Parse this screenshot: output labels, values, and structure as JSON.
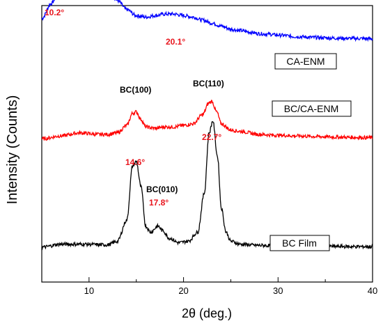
{
  "chart_data": {
    "type": "line",
    "xlabel": "2θ (deg.)",
    "ylabel": "Intensity (Counts)",
    "xlim": [
      5,
      40
    ],
    "xticks": [
      "10",
      "20",
      "30",
      "40"
    ],
    "y_ticks_shown": false,
    "grid": false,
    "series": [
      {
        "name": "CA-ENM",
        "color": "#0000ff",
        "offset": 0.68,
        "points": [
          [
            5,
            0.08
          ],
          [
            6,
            0.13
          ],
          [
            7,
            0.19
          ],
          [
            8,
            0.24
          ],
          [
            9,
            0.27
          ],
          [
            10,
            0.265
          ],
          [
            11,
            0.23
          ],
          [
            12,
            0.18
          ],
          [
            13,
            0.14
          ],
          [
            14,
            0.11
          ],
          [
            15,
            0.09
          ],
          [
            16,
            0.085
          ],
          [
            17,
            0.09
          ],
          [
            18,
            0.095
          ],
          [
            19,
            0.095
          ],
          [
            20,
            0.09
          ],
          [
            21,
            0.085
          ],
          [
            22,
            0.075
          ],
          [
            23,
            0.065
          ],
          [
            24,
            0.055
          ],
          [
            25,
            0.045
          ],
          [
            26,
            0.04
          ],
          [
            27,
            0.035
          ],
          [
            28,
            0.03
          ],
          [
            29,
            0.028
          ],
          [
            30,
            0.025
          ],
          [
            32,
            0.02
          ],
          [
            34,
            0.017
          ],
          [
            36,
            0.015
          ],
          [
            38,
            0.014
          ],
          [
            40,
            0.013
          ]
        ]
      },
      {
        "name": "BC/CA-ENM",
        "color": "#ff0000",
        "offset": 0.36,
        "points": [
          [
            5,
            0.0
          ],
          [
            7,
            0.01
          ],
          [
            9,
            0.02
          ],
          [
            11,
            0.015
          ],
          [
            12,
            0.015
          ],
          [
            13,
            0.02
          ],
          [
            14,
            0.045
          ],
          [
            14.6,
            0.085
          ],
          [
            15,
            0.09
          ],
          [
            15.5,
            0.065
          ],
          [
            16,
            0.04
          ],
          [
            17,
            0.035
          ],
          [
            18,
            0.04
          ],
          [
            19,
            0.04
          ],
          [
            20,
            0.045
          ],
          [
            21,
            0.05
          ],
          [
            22,
            0.08
          ],
          [
            22.7,
            0.12
          ],
          [
            23,
            0.125
          ],
          [
            23.5,
            0.09
          ],
          [
            24,
            0.05
          ],
          [
            25,
            0.03
          ],
          [
            26,
            0.025
          ],
          [
            28,
            0.015
          ],
          [
            30,
            0.012
          ],
          [
            32,
            0.01
          ],
          [
            34,
            0.008
          ],
          [
            36,
            0.006
          ],
          [
            38,
            0.005
          ],
          [
            40,
            0.004
          ]
        ]
      },
      {
        "name": "BC Film",
        "color": "#000000",
        "offset": 0.0,
        "points": [
          [
            5,
            0.0
          ],
          [
            7,
            0.01
          ],
          [
            9,
            0.01
          ],
          [
            10,
            0.01
          ],
          [
            11,
            0.008
          ],
          [
            12,
            0.008
          ],
          [
            13,
            0.02
          ],
          [
            14,
            0.09
          ],
          [
            14.6,
            0.27
          ],
          [
            15,
            0.285
          ],
          [
            15.5,
            0.2
          ],
          [
            16,
            0.07
          ],
          [
            16.5,
            0.05
          ],
          [
            17.3,
            0.07
          ],
          [
            17.8,
            0.055
          ],
          [
            18.5,
            0.03
          ],
          [
            19.5,
            0.015
          ],
          [
            20.5,
            0.02
          ],
          [
            21.5,
            0.05
          ],
          [
            22.2,
            0.18
          ],
          [
            22.7,
            0.38
          ],
          [
            23.1,
            0.42
          ],
          [
            23.6,
            0.3
          ],
          [
            24,
            0.13
          ],
          [
            24.5,
            0.05
          ],
          [
            25,
            0.02
          ],
          [
            26,
            0.01
          ],
          [
            28,
            0.006
          ],
          [
            30,
            0.005
          ],
          [
            32,
            0.004
          ],
          [
            35,
            0.003
          ],
          [
            38,
            0.002
          ],
          [
            40,
            0.002
          ]
        ]
      }
    ],
    "legend_labels": [
      {
        "text": "CA-ENM",
        "color": "#000000"
      },
      {
        "text": "BC/CA-ENM",
        "color": "#000000"
      },
      {
        "text": "BC Film",
        "color": "#000000"
      }
    ],
    "annotations": [
      {
        "text": "10.2°",
        "color": "#e8141c"
      },
      {
        "text": "20.1°",
        "color": "#e8141c"
      },
      {
        "text": "BC(100)",
        "color": "#000000"
      },
      {
        "text": "BC(110)",
        "color": "#000000"
      },
      {
        "text": "22.7°",
        "color": "#e8141c"
      },
      {
        "text": "14.6°",
        "color": "#e8141c"
      },
      {
        "text": "BC(010)",
        "color": "#000000"
      },
      {
        "text": "17.8°",
        "color": "#e8141c"
      }
    ]
  }
}
